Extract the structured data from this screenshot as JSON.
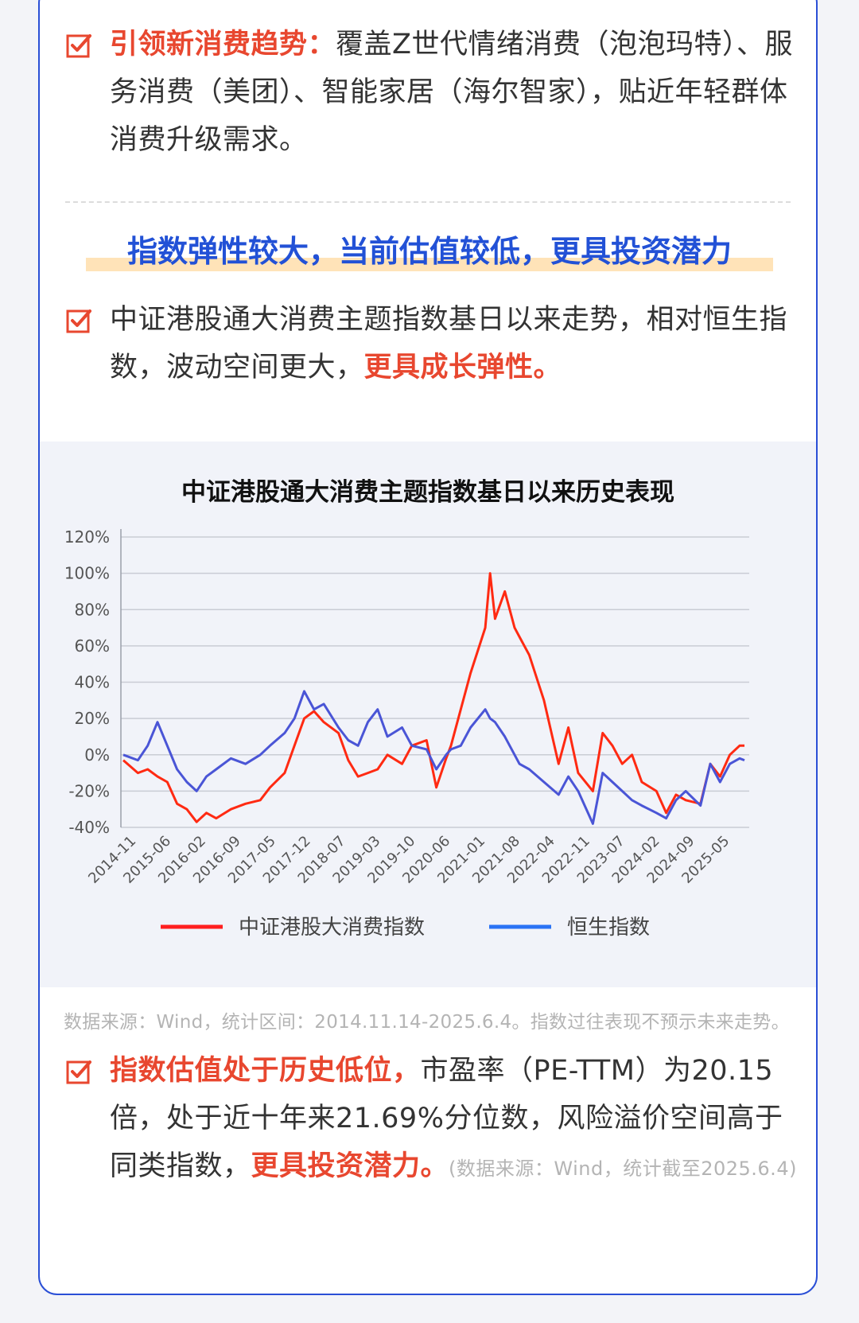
{
  "section1": {
    "highlight": "引领新消费趋势：",
    "text": "覆盖Z世代情绪消费（泡泡玛特）、服务消费（美团）、智能家居（海尔智家），贴近年轻群体消费升级需求。"
  },
  "subheading": "指数弹性较大，当前估值较低，更具投资潜力",
  "section2": {
    "text": "中证港股通大消费主题指数基日以来走势，相对恒生指数，波动空间更大，",
    "highlight": "更具成长弹性。"
  },
  "section3": {
    "highlight": "指数估值处于历史低位，",
    "text": "市盈率（PE-TTM）为20.15倍，处于近十年来21.69%分位数，风险溢价空间高于同类指数，",
    "highlight2": "更具投资潜力。",
    "note": "(数据来源：Wind，统计截至2025.6.4)"
  },
  "source_note": "数据来源：Wind，统计区间：2014.11.14-2025.6.4。指数过往表现不预示未来走势。",
  "colors": {
    "accent_red": "#e8472f",
    "accent_blue": "#2251d6",
    "border": "#2a4fd6"
  },
  "chart_data": {
    "type": "line",
    "title": "中证港股通大消费主题指数基日以来历史表现",
    "xlabel": "",
    "ylabel": "",
    "ylim": [
      -40,
      120
    ],
    "y_ticks": [
      "120%",
      "100%",
      "80%",
      "60%",
      "40%",
      "20%",
      "0%",
      "-20%",
      "-40%"
    ],
    "x_ticks": [
      "2014-11",
      "2015-06",
      "2016-02",
      "2016-09",
      "2017-05",
      "2017-12",
      "2018-07",
      "2019-03",
      "2019-10",
      "2020-06",
      "2021-01",
      "2021-08",
      "2022-04",
      "2022-11",
      "2023-07",
      "2024-02",
      "2024-09",
      "2025-05"
    ],
    "grid": true,
    "legend": "bottom",
    "x": [
      "2014-11",
      "2015-02",
      "2015-04",
      "2015-06",
      "2015-08",
      "2015-10",
      "2015-12",
      "2016-02",
      "2016-04",
      "2016-06",
      "2016-09",
      "2016-12",
      "2017-03",
      "2017-05",
      "2017-08",
      "2017-10",
      "2017-12",
      "2018-02",
      "2018-04",
      "2018-07",
      "2018-09",
      "2018-11",
      "2019-01",
      "2019-03",
      "2019-05",
      "2019-08",
      "2019-10",
      "2020-01",
      "2020-03",
      "2020-05",
      "2020-06",
      "2020-08",
      "2020-10",
      "2021-01",
      "2021-02",
      "2021-03",
      "2021-05",
      "2021-07",
      "2021-08",
      "2021-10",
      "2022-01",
      "2022-04",
      "2022-06",
      "2022-08",
      "2022-11",
      "2023-01",
      "2023-03",
      "2023-05",
      "2023-07",
      "2023-09",
      "2023-12",
      "2024-02",
      "2024-04",
      "2024-06",
      "2024-09",
      "2024-11",
      "2025-01",
      "2025-03",
      "2025-05",
      "2025-06"
    ],
    "series": [
      {
        "name": "中证港股大消费指数",
        "color": "#ff2a12",
        "values": [
          -3,
          -10,
          -8,
          -12,
          -15,
          -27,
          -30,
          -37,
          -32,
          -35,
          -30,
          -27,
          -25,
          -18,
          -10,
          5,
          20,
          24,
          18,
          12,
          -3,
          -12,
          -10,
          -8,
          0,
          -5,
          5,
          8,
          -18,
          -2,
          5,
          25,
          45,
          70,
          100,
          75,
          90,
          70,
          65,
          55,
          30,
          -5,
          15,
          -10,
          -20,
          12,
          5,
          -5,
          0,
          -15,
          -20,
          -32,
          -22,
          -25,
          -27,
          -5,
          -12,
          0,
          5,
          5
        ]
      },
      {
        "name": "恒生指数",
        "color": "#4a55d6",
        "values": [
          0,
          -3,
          5,
          18,
          5,
          -8,
          -15,
          -20,
          -12,
          -8,
          -2,
          -5,
          0,
          5,
          12,
          20,
          35,
          25,
          28,
          15,
          8,
          5,
          18,
          25,
          10,
          15,
          5,
          3,
          -8,
          0,
          3,
          5,
          15,
          25,
          20,
          18,
          10,
          0,
          -5,
          -8,
          -15,
          -22,
          -12,
          -20,
          -38,
          -10,
          -15,
          -20,
          -25,
          -28,
          -32,
          -35,
          -25,
          -20,
          -28,
          -5,
          -15,
          -5,
          -2,
          -3
        ]
      }
    ]
  }
}
